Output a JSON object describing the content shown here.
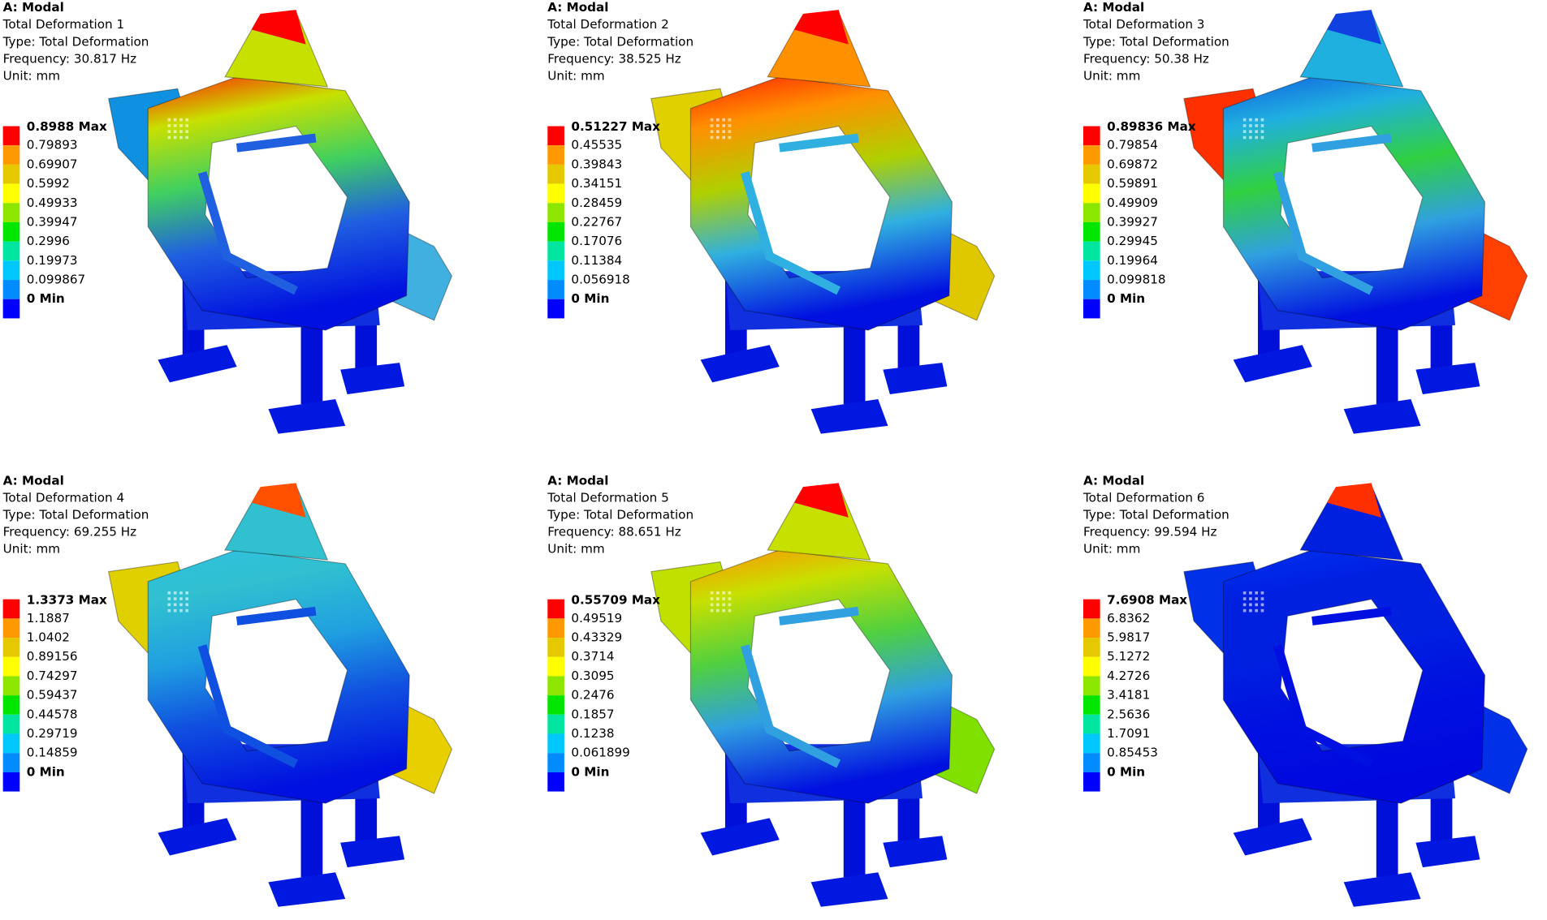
{
  "panels": [
    {
      "title": "A: Modal",
      "name": "Total Deformation 1",
      "type": "Type: Total Deformation",
      "frequency": "Frequency: 30.817 Hz",
      "unit": "Unit: mm",
      "legend": [
        "0.8988 Max",
        "0.79893",
        "0.69907",
        "0.5992",
        "0.49933",
        "0.39947",
        "0.2996",
        "0.19973",
        "0.099867",
        "0 Min"
      ]
    },
    {
      "title": "A: Modal",
      "name": "Total Deformation 2",
      "type": "Type: Total Deformation",
      "frequency": "Frequency: 38.525 Hz",
      "unit": "Unit: mm",
      "legend": [
        "0.51227 Max",
        "0.45535",
        "0.39843",
        "0.34151",
        "0.28459",
        "0.22767",
        "0.17076",
        "0.11384",
        "0.056918",
        "0 Min"
      ]
    },
    {
      "title": "A: Modal",
      "name": "Total Deformation 3",
      "type": "Type: Total Deformation",
      "frequency": "Frequency: 50.38 Hz",
      "unit": "Unit: mm",
      "legend": [
        "0.89836 Max",
        "0.79854",
        "0.69872",
        "0.59891",
        "0.49909",
        "0.39927",
        "0.29945",
        "0.19964",
        "0.099818",
        "0 Min"
      ]
    },
    {
      "title": "A: Modal",
      "name": "Total Deformation 4",
      "type": "Type: Total Deformation",
      "frequency": "Frequency: 69.255 Hz",
      "unit": "Unit: mm",
      "legend": [
        "1.3373 Max",
        "1.1887",
        "1.0402",
        "0.89156",
        "0.74297",
        "0.59437",
        "0.44578",
        "0.29719",
        "0.14859",
        "0 Min"
      ]
    },
    {
      "title": "A: Modal",
      "name": "Total Deformation 5",
      "type": "Type: Total Deformation",
      "frequency": "Frequency: 88.651 Hz",
      "unit": "Unit: mm",
      "legend": [
        "0.55709 Max",
        "0.49519",
        "0.43329",
        "0.3714",
        "0.3095",
        "0.2476",
        "0.1857",
        "0.1238",
        "0.061899",
        "0 Min"
      ]
    },
    {
      "title": "A: Modal",
      "name": "Total Deformation 6",
      "type": "Type: Total Deformation",
      "frequency": "Frequency: 99.594 Hz",
      "unit": "Unit: mm",
      "legend": [
        "7.6908 Max",
        "6.8362",
        "5.9817",
        "5.1272",
        "4.2726",
        "3.4181",
        "2.5636",
        "1.7091",
        "0.85453",
        "0 Min"
      ]
    }
  ]
}
